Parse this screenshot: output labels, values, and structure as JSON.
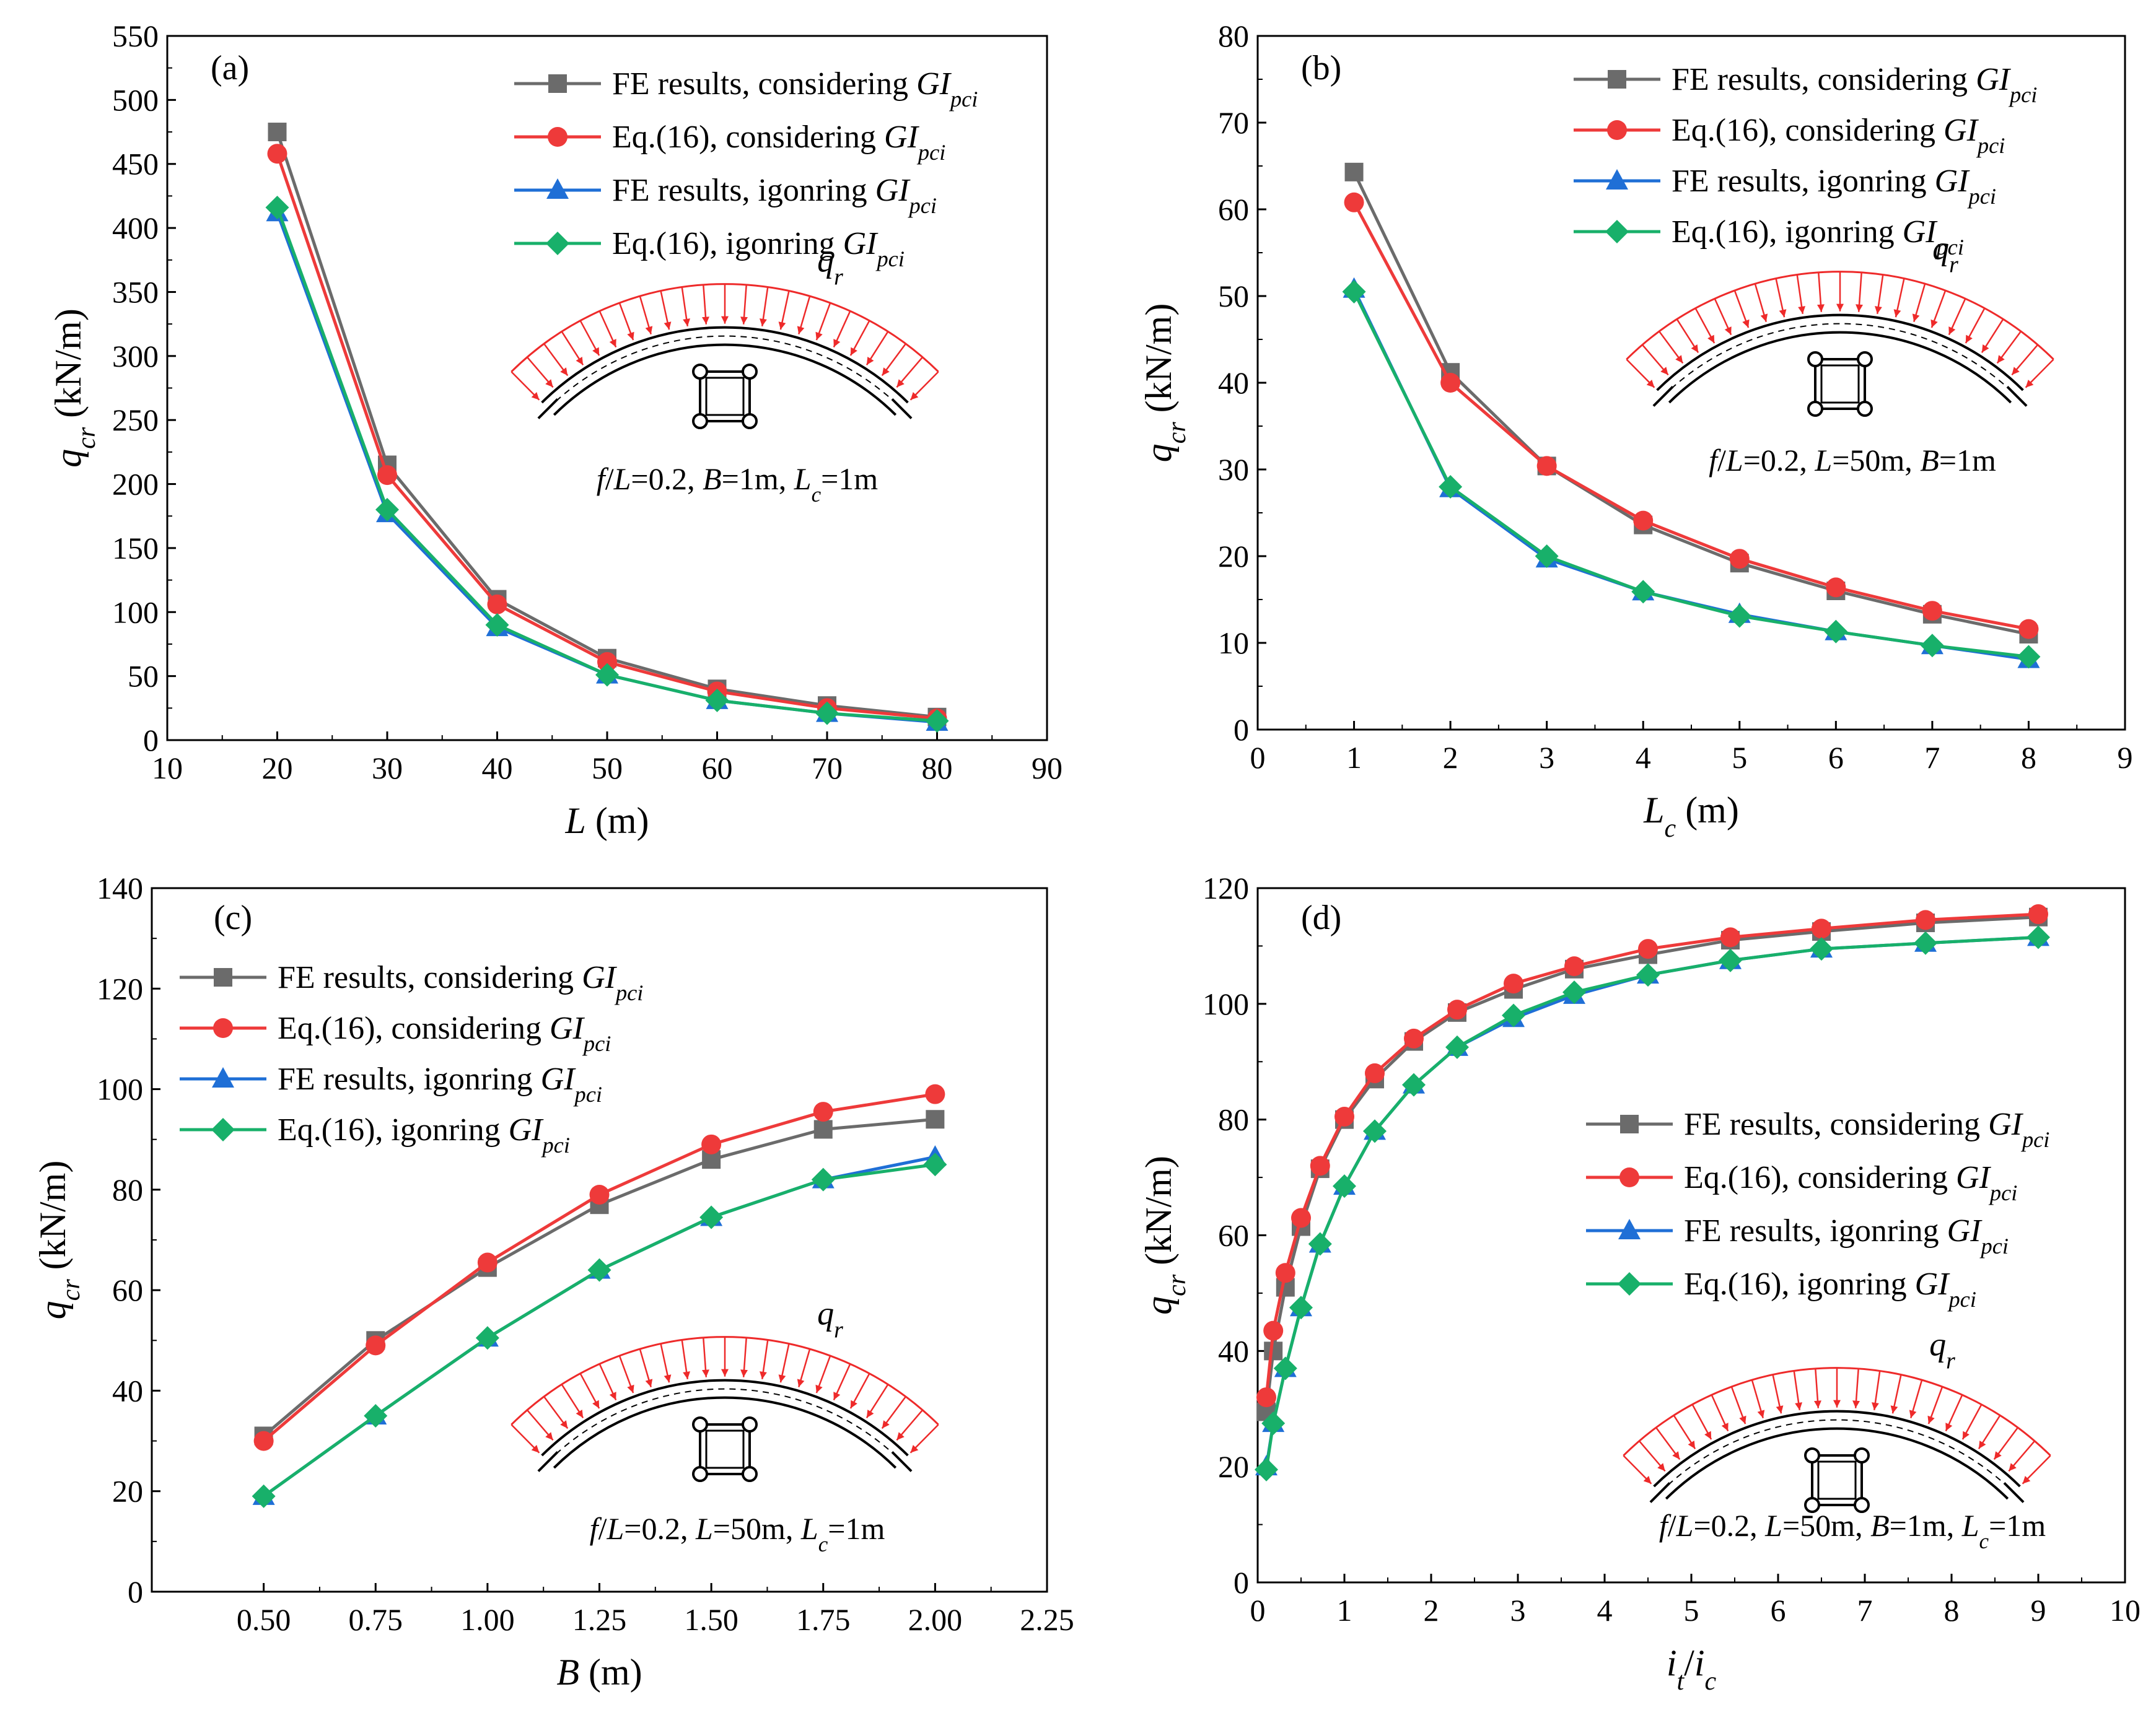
{
  "colors": {
    "fe_considering": "#6b6b6b",
    "eq_considering": "#ee3a3a",
    "fe_ignoring": "#1f6fd6",
    "eq_ignoring": "#18b06a",
    "load": "#ee2a2a"
  },
  "chart_data": [
    {
      "id": "a",
      "type": "line",
      "panel_label": "(a)",
      "title": "",
      "xlabel": "L (m)",
      "ylabel": "qcr (kN/m)",
      "xlim": [
        10,
        90
      ],
      "ylim": [
        0,
        550
      ],
      "xticks": [
        10,
        20,
        30,
        40,
        50,
        60,
        70,
        80,
        90
      ],
      "yticks": [
        0,
        50,
        100,
        150,
        200,
        250,
        300,
        350,
        400,
        450,
        500,
        550
      ],
      "legend_position": "top-right",
      "caption": "f/L=0.2, B=1m, Lc=1m",
      "load_label": "qr",
      "x": [
        20,
        30,
        40,
        50,
        60,
        70,
        80
      ],
      "series": [
        {
          "name": "FE results, considering GIpci",
          "marker": "square",
          "values": [
            475,
            215,
            110,
            64,
            40,
            27,
            18
          ]
        },
        {
          "name": "Eq.(16), considering GIpci",
          "marker": "circle",
          "values": [
            458,
            207,
            106,
            61,
            38,
            25,
            17
          ]
        },
        {
          "name": "FE results, igonring GIpci",
          "marker": "triangle",
          "values": [
            412,
            177,
            88,
            51,
            31,
            21,
            14
          ]
        },
        {
          "name": "Eq.(16), igonring GIpci",
          "marker": "diamond",
          "values": [
            416,
            180,
            90,
            51,
            31,
            21,
            15
          ]
        }
      ]
    },
    {
      "id": "b",
      "type": "line",
      "panel_label": "(b)",
      "title": "",
      "xlabel": "Lc (m)",
      "ylabel": "qcr (kN/m)",
      "xlim": [
        0,
        9
      ],
      "ylim": [
        0,
        80
      ],
      "xticks": [
        0,
        1,
        2,
        3,
        4,
        5,
        6,
        7,
        8,
        9
      ],
      "yticks": [
        0,
        10,
        20,
        30,
        40,
        50,
        60,
        70,
        80
      ],
      "legend_position": "top-right",
      "caption": "f/L=0.2, L=50m, B=1m",
      "load_label": "qr",
      "x": [
        1,
        2,
        3,
        4,
        5,
        6,
        7,
        8
      ],
      "series": [
        {
          "name": "FE results, considering GIpci",
          "marker": "square",
          "values": [
            64.3,
            41.2,
            30.4,
            23.6,
            19.2,
            16.0,
            13.3,
            11.0
          ]
        },
        {
          "name": "Eq.(16), considering GIpci",
          "marker": "circle",
          "values": [
            60.8,
            40.0,
            30.4,
            24.1,
            19.7,
            16.4,
            13.7,
            11.6
          ]
        },
        {
          "name": "FE results, igonring GIpci",
          "marker": "triangle",
          "values": [
            50.8,
            27.8,
            19.7,
            15.9,
            13.3,
            11.3,
            9.7,
            8.1
          ]
        },
        {
          "name": "Eq.(16), igonring GIpci",
          "marker": "diamond",
          "values": [
            50.5,
            28.0,
            20.0,
            15.9,
            13.1,
            11.3,
            9.7,
            8.4
          ]
        }
      ]
    },
    {
      "id": "c",
      "type": "line",
      "panel_label": "(c)",
      "title": "",
      "xlabel": "B (m)",
      "ylabel": "qcr (kN/m)",
      "xlim": [
        0.25,
        2.25
      ],
      "ylim": [
        0,
        140
      ],
      "xticks": [
        "0.50",
        "0.75",
        "1.00",
        "1.25",
        "1.50",
        "1.75",
        "2.00",
        "2.25"
      ],
      "yticks": [
        0,
        20,
        40,
        60,
        80,
        100,
        120,
        140
      ],
      "legend_position": "top-left",
      "caption": "f/L=0.2, L=50m, Lc=1m",
      "load_label": "qr",
      "x": [
        0.5,
        0.75,
        1.0,
        1.25,
        1.5,
        1.75,
        2.0
      ],
      "series": [
        {
          "name": "FE results, considering GIpci",
          "marker": "square",
          "values": [
            31,
            50,
            64.5,
            77,
            86,
            92,
            94
          ]
        },
        {
          "name": "Eq.(16), considering GIpci",
          "marker": "circle",
          "values": [
            30,
            49,
            65.5,
            79,
            89,
            95.5,
            99
          ]
        },
        {
          "name": "FE results, igonring GIpci",
          "marker": "triangle",
          "values": [
            19,
            35,
            50.5,
            64,
            74.5,
            82,
            86.5
          ]
        },
        {
          "name": "Eq.(16), igonring GIpci",
          "marker": "diamond",
          "values": [
            19,
            35,
            50.5,
            64,
            74.5,
            82,
            85
          ]
        }
      ]
    },
    {
      "id": "d",
      "type": "line",
      "panel_label": "(d)",
      "title": "",
      "xlabel": "it/ic",
      "ylabel": "qcr (kN/m)",
      "xlim": [
        0,
        10
      ],
      "ylim": [
        0,
        120
      ],
      "xticks": [
        0,
        1,
        2,
        3,
        4,
        5,
        6,
        7,
        8,
        9,
        10
      ],
      "yticks": [
        0,
        20,
        40,
        60,
        80,
        100,
        120
      ],
      "legend_position": "center-right",
      "caption": "f/L=0.2, L=50m, B=1m, Lc=1m",
      "load_label": "qr",
      "x": [
        0.1,
        0.18,
        0.32,
        0.5,
        0.72,
        1.0,
        1.35,
        1.8,
        2.3,
        2.95,
        3.65,
        4.5,
        5.45,
        6.5,
        7.7,
        9.0
      ],
      "series": [
        {
          "name": "FE results, considering GIpci",
          "marker": "square",
          "values": [
            29.5,
            40,
            51,
            61.5,
            71.5,
            80,
            87,
            93.5,
            98.5,
            102.5,
            106,
            108.5,
            111,
            112.5,
            114,
            115
          ]
        },
        {
          "name": "Eq.(16), considering GIpci",
          "marker": "circle",
          "values": [
            32,
            43.5,
            53.5,
            63,
            72,
            80.5,
            88,
            94,
            99,
            103.5,
            106.5,
            109.5,
            111.5,
            113,
            114.5,
            115.5
          ]
        },
        {
          "name": "FE results, igonring GIpci",
          "marker": "triangle",
          "values": [
            20,
            27.5,
            37,
            47.5,
            58.5,
            68.5,
            78,
            86,
            92.5,
            97.5,
            101.5,
            105,
            107.5,
            109.5,
            110.5,
            111.5
          ]
        },
        {
          "name": "Eq.(16), igonring GIpci",
          "marker": "diamond",
          "values": [
            19.5,
            27.5,
            37,
            47.5,
            58.5,
            68.5,
            78,
            86,
            92.5,
            98,
            102,
            105,
            107.5,
            109.5,
            110.5,
            111.5
          ]
        }
      ]
    }
  ]
}
